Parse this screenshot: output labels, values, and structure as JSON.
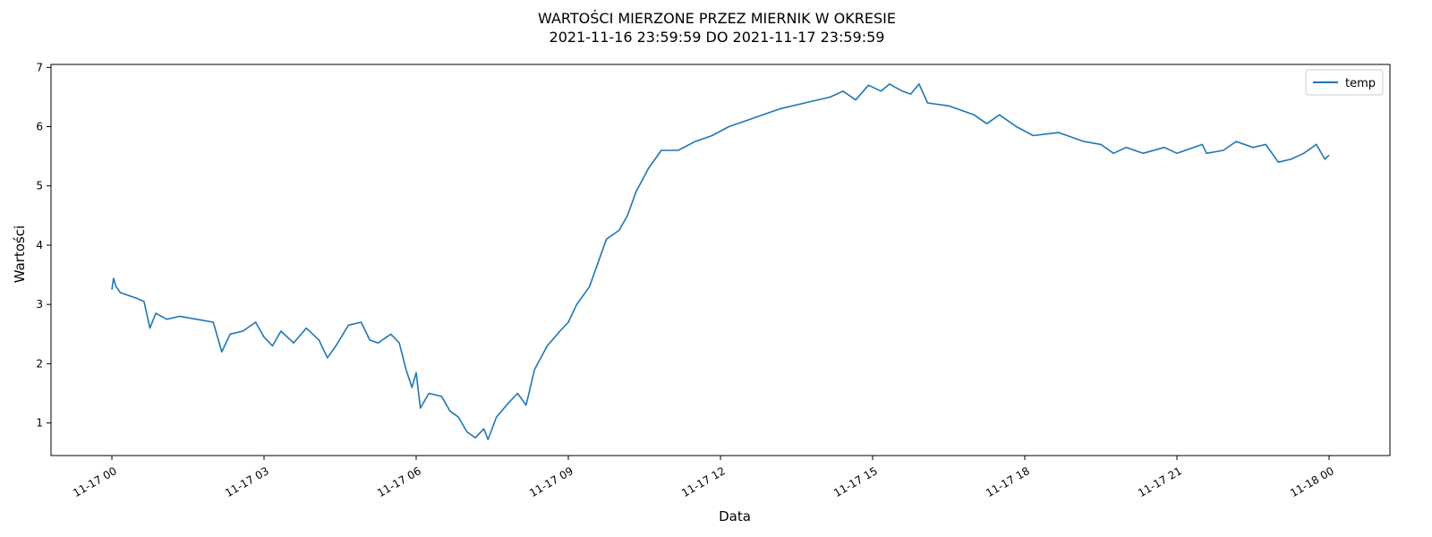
{
  "chart_data": {
    "type": "line",
    "title": "WARTOŚCI MIERZONE PRZEZ MIERNIK W OKRESIE",
    "subtitle": "2021-11-16 23:59:59 DO 2021-11-17 23:59:59",
    "xlabel": "Data",
    "ylabel": "Wartości",
    "xlim": [
      "2021-11-16 22:48",
      "2021-11-18 01:12"
    ],
    "ylim": [
      0.45,
      7.05
    ],
    "x_ticks": [
      {
        "value": "2021-11-17 00:00",
        "label": "11-17 00"
      },
      {
        "value": "2021-11-17 03:00",
        "label": "11-17 03"
      },
      {
        "value": "2021-11-17 06:00",
        "label": "11-17 06"
      },
      {
        "value": "2021-11-17 09:00",
        "label": "11-17 09"
      },
      {
        "value": "2021-11-17 12:00",
        "label": "11-17 12"
      },
      {
        "value": "2021-11-17 15:00",
        "label": "11-17 15"
      },
      {
        "value": "2021-11-17 18:00",
        "label": "11-17 18"
      },
      {
        "value": "2021-11-17 21:00",
        "label": "11-17 21"
      },
      {
        "value": "2021-11-18 00:00",
        "label": "11-18 00"
      }
    ],
    "y_ticks": [
      1,
      2,
      3,
      4,
      5,
      6,
      7
    ],
    "grid": false,
    "legend": {
      "position": "top-right",
      "entries": [
        "temp"
      ]
    },
    "series": [
      {
        "name": "temp",
        "color": "#1f77b4",
        "points": [
          [
            "2021-11-17 00:00",
            3.25
          ],
          [
            "2021-11-17 00:02",
            3.44
          ],
          [
            "2021-11-17 00:05",
            3.3
          ],
          [
            "2021-11-17 00:10",
            3.2
          ],
          [
            "2021-11-17 00:20",
            3.15
          ],
          [
            "2021-11-17 00:30",
            3.1
          ],
          [
            "2021-11-17 00:38",
            3.05
          ],
          [
            "2021-11-17 00:45",
            2.6
          ],
          [
            "2021-11-17 00:52",
            2.85
          ],
          [
            "2021-11-17 01:05",
            2.75
          ],
          [
            "2021-11-17 01:20",
            2.8
          ],
          [
            "2021-11-17 01:40",
            2.75
          ],
          [
            "2021-11-17 02:00",
            2.7
          ],
          [
            "2021-11-17 02:10",
            2.2
          ],
          [
            "2021-11-17 02:20",
            2.5
          ],
          [
            "2021-11-17 02:35",
            2.55
          ],
          [
            "2021-11-17 02:50",
            2.7
          ],
          [
            "2021-11-17 03:00",
            2.45
          ],
          [
            "2021-11-17 03:10",
            2.3
          ],
          [
            "2021-11-17 03:20",
            2.55
          ],
          [
            "2021-11-17 03:35",
            2.35
          ],
          [
            "2021-11-17 03:50",
            2.6
          ],
          [
            "2021-11-17 04:05",
            2.4
          ],
          [
            "2021-11-17 04:15",
            2.1
          ],
          [
            "2021-11-17 04:25",
            2.3
          ],
          [
            "2021-11-17 04:40",
            2.65
          ],
          [
            "2021-11-17 04:55",
            2.7
          ],
          [
            "2021-11-17 05:05",
            2.4
          ],
          [
            "2021-11-17 05:15",
            2.35
          ],
          [
            "2021-11-17 05:30",
            2.5
          ],
          [
            "2021-11-17 05:40",
            2.35
          ],
          [
            "2021-11-17 05:48",
            1.9
          ],
          [
            "2021-11-17 05:55",
            1.6
          ],
          [
            "2021-11-17 06:00",
            1.85
          ],
          [
            "2021-11-17 06:05",
            1.25
          ],
          [
            "2021-11-17 06:15",
            1.5
          ],
          [
            "2021-11-17 06:30",
            1.45
          ],
          [
            "2021-11-17 06:40",
            1.2
          ],
          [
            "2021-11-17 06:50",
            1.1
          ],
          [
            "2021-11-17 07:00",
            0.85
          ],
          [
            "2021-11-17 07:10",
            0.75
          ],
          [
            "2021-11-17 07:20",
            0.9
          ],
          [
            "2021-11-17 07:25",
            0.72
          ],
          [
            "2021-11-17 07:35",
            1.1
          ],
          [
            "2021-11-17 07:50",
            1.35
          ],
          [
            "2021-11-17 08:00",
            1.5
          ],
          [
            "2021-11-17 08:10",
            1.3
          ],
          [
            "2021-11-17 08:20",
            1.9
          ],
          [
            "2021-11-17 08:35",
            2.3
          ],
          [
            "2021-11-17 08:50",
            2.55
          ],
          [
            "2021-11-17 09:00",
            2.7
          ],
          [
            "2021-11-17 09:10",
            3.0
          ],
          [
            "2021-11-17 09:25",
            3.3
          ],
          [
            "2021-11-17 09:35",
            3.7
          ],
          [
            "2021-11-17 09:45",
            4.1
          ],
          [
            "2021-11-17 10:00",
            4.25
          ],
          [
            "2021-11-17 10:10",
            4.5
          ],
          [
            "2021-11-17 10:20",
            4.9
          ],
          [
            "2021-11-17 10:35",
            5.3
          ],
          [
            "2021-11-17 10:50",
            5.6
          ],
          [
            "2021-11-17 11:10",
            5.6
          ],
          [
            "2021-11-17 11:30",
            5.75
          ],
          [
            "2021-11-17 11:50",
            5.85
          ],
          [
            "2021-11-17 12:10",
            6.0
          ],
          [
            "2021-11-17 12:40",
            6.15
          ],
          [
            "2021-11-17 13:10",
            6.3
          ],
          [
            "2021-11-17 13:40",
            6.4
          ],
          [
            "2021-11-17 14:10",
            6.5
          ],
          [
            "2021-11-17 14:25",
            6.6
          ],
          [
            "2021-11-17 14:40",
            6.45
          ],
          [
            "2021-11-17 14:55",
            6.7
          ],
          [
            "2021-11-17 15:10",
            6.6
          ],
          [
            "2021-11-17 15:20",
            6.72
          ],
          [
            "2021-11-17 15:35",
            6.6
          ],
          [
            "2021-11-17 15:45",
            6.55
          ],
          [
            "2021-11-17 15:55",
            6.72
          ],
          [
            "2021-11-17 16:05",
            6.4
          ],
          [
            "2021-11-17 16:30",
            6.35
          ],
          [
            "2021-11-17 17:00",
            6.2
          ],
          [
            "2021-11-17 17:15",
            6.05
          ],
          [
            "2021-11-17 17:30",
            6.2
          ],
          [
            "2021-11-17 17:50",
            6.0
          ],
          [
            "2021-11-17 18:10",
            5.85
          ],
          [
            "2021-11-17 18:40",
            5.9
          ],
          [
            "2021-11-17 19:10",
            5.75
          ],
          [
            "2021-11-17 19:30",
            5.7
          ],
          [
            "2021-11-17 19:45",
            5.55
          ],
          [
            "2021-11-17 20:00",
            5.65
          ],
          [
            "2021-11-17 20:20",
            5.55
          ],
          [
            "2021-11-17 20:45",
            5.65
          ],
          [
            "2021-11-17 21:00",
            5.55
          ],
          [
            "2021-11-17 21:30",
            5.7
          ],
          [
            "2021-11-17 21:35",
            5.55
          ],
          [
            "2021-11-17 21:55",
            5.6
          ],
          [
            "2021-11-17 22:10",
            5.75
          ],
          [
            "2021-11-17 22:30",
            5.65
          ],
          [
            "2021-11-17 22:45",
            5.7
          ],
          [
            "2021-11-17 23:00",
            5.4
          ],
          [
            "2021-11-17 23:15",
            5.45
          ],
          [
            "2021-11-17 23:30",
            5.55
          ],
          [
            "2021-11-17 23:45",
            5.7
          ],
          [
            "2021-11-17 23:55",
            5.45
          ],
          [
            "2021-11-18 00:00",
            5.52
          ]
        ]
      }
    ]
  }
}
